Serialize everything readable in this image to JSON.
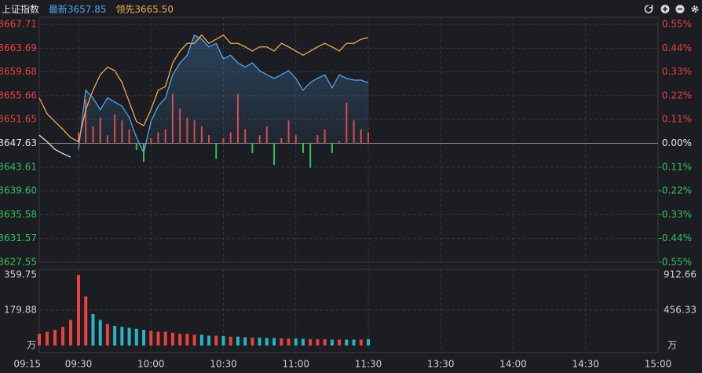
{
  "chart_data": {
    "type": "line",
    "title": "上证指数",
    "header": {
      "latest": "3657.85",
      "lead": "3665.50"
    },
    "x": [
      "09:15",
      "09:18",
      "09:21",
      "09:24",
      "09:27",
      "09:30",
      "09:33",
      "09:36",
      "09:39",
      "09:42",
      "09:45",
      "09:48",
      "09:51",
      "09:54",
      "09:57",
      "10:00",
      "10:03",
      "10:06",
      "10:09",
      "10:12",
      "10:15",
      "10:18",
      "10:21",
      "10:24",
      "10:27",
      "10:30",
      "10:33",
      "10:36",
      "10:39",
      "10:42",
      "10:45",
      "10:48",
      "10:51",
      "10:54",
      "10:57",
      "11:00",
      "11:03",
      "11:06",
      "11:09",
      "11:12",
      "11:15",
      "11:18",
      "11:21",
      "11:24",
      "11:27",
      "11:30"
    ],
    "xticks": [
      "09:15",
      "09:30",
      "10:00",
      "10:30",
      "11:00",
      "11:30",
      "13:30",
      "14:00",
      "14:30",
      "15:00"
    ],
    "ylim": [
      3627.55,
      3667.71
    ],
    "yticks": [
      3667.71,
      3663.69,
      3659.68,
      3655.66,
      3651.65,
      3647.63,
      3643.61,
      {
        "value": 3639.6,
        "label": "3639.60"
      },
      3635.58,
      3631.57,
      3627.55
    ],
    "y2lim": [
      -0.55,
      0.55
    ],
    "y2ticks": [
      {
        "value": 0.55,
        "label": "0.55%"
      },
      {
        "value": 0.44,
        "label": "0.44%"
      },
      {
        "value": 0.33,
        "label": "0.33%"
      },
      {
        "value": 0.22,
        "label": "0.22%"
      },
      {
        "value": 0.11,
        "label": "0.11%"
      },
      {
        "value": 0,
        "label": "0.00%"
      },
      {
        "value": -0.11,
        "label": "-0.11%"
      },
      {
        "value": -0.22,
        "label": "-0.22%"
      },
      {
        "value": -0.33,
        "label": "-0.33%"
      },
      {
        "value": -0.44,
        "label": "-0.44%"
      },
      {
        "value": -0.55,
        "label": "-0.55%"
      }
    ],
    "up_color": "#e8413e",
    "down_color": "#2fc25b",
    "grid": true,
    "series": [
      {
        "name": "最新",
        "color": "#4da6ee",
        "area": true,
        "values": [
          null,
          null,
          null,
          null,
          null,
          3646.6,
          3656.6,
          3655.3,
          3653.3,
          3655.3,
          3654.6,
          3653.9,
          3652.0,
          3648.6,
          3646.0,
          3651.3,
          3653.9,
          3655.3,
          3659.2,
          3661.2,
          3662.5,
          3665.9,
          3665.2,
          3663.9,
          3664.5,
          3661.9,
          3662.5,
          3661.2,
          3660.5,
          3661.2,
          3659.9,
          3659.2,
          3658.6,
          3659.2,
          3659.9,
          3658.6,
          3656.6,
          3657.9,
          3658.6,
          3659.2,
          3657.0,
          3659.2,
          3658.6,
          3658.3,
          3658.3,
          3657.85
        ]
      },
      {
        "name": "领先",
        "color": "#f2a94a",
        "values": [
          3655.3,
          3652.6,
          3651.3,
          3650.0,
          3648.6,
          3647.9,
          3653.3,
          3656.6,
          3659.2,
          3660.5,
          3659.9,
          3657.9,
          3654.6,
          3651.3,
          3650.6,
          3653.3,
          3656.6,
          3657.2,
          3661.2,
          3663.2,
          3664.5,
          3664.5,
          3665.9,
          3664.5,
          3665.2,
          3665.9,
          3664.5,
          3664.5,
          3663.9,
          3663.2,
          3663.9,
          3663.9,
          3663.2,
          3664.5,
          3663.9,
          3663.2,
          3662.5,
          3663.2,
          3663.9,
          3664.5,
          3663.9,
          3663.2,
          3664.5,
          3664.5,
          3665.2,
          3665.5
        ]
      },
      {
        "color": "#e8e8e8",
        "values": [
          3649.0,
          3647.9,
          3646.6,
          3645.9,
          3645.3,
          null,
          null,
          null,
          null,
          null,
          null,
          null,
          null,
          null,
          null,
          null,
          null,
          null,
          null,
          null,
          null,
          null,
          null,
          null,
          null,
          null,
          null,
          null,
          null,
          null,
          null,
          null,
          null,
          null,
          null,
          null,
          null,
          null,
          null,
          null,
          null,
          null,
          null,
          null,
          null,
          null
        ]
      }
    ],
    "strength": {
      "values": [
        null,
        null,
        null,
        null,
        null,
        3649.5,
        3655.0,
        3650.5,
        3652.0,
        3649.0,
        3652.5,
        3651.5,
        3650.0,
        3646.5,
        3644.5,
        3648.5,
        3649.5,
        3650.0,
        3656.0,
        3653.5,
        3652.0,
        3651.5,
        3650.5,
        3649.0,
        3645.0,
        3648.5,
        3649.5,
        3656.0,
        3650.0,
        3646.0,
        3649.0,
        3650.5,
        3644.0,
        3648.5,
        3651.5,
        3649.0,
        3646.0,
        3643.5,
        3649.0,
        3650.0,
        3646.0,
        3648.0,
        3654.5,
        3651.5,
        3650.0,
        3649.5
      ]
    },
    "volume": {
      "unit": "万",
      "up_color": "#e8413e",
      "down_color": "#26b5c4",
      "ylim": [
        0,
        359.75
      ],
      "yticks": [
        359.75,
        179.88
      ],
      "y2lim": [
        0,
        912.66
      ],
      "y2ticks": [
        912.66,
        456.33
      ],
      "values": [
        60,
        70,
        80,
        95,
        130,
        359.75,
        250,
        160,
        130,
        110,
        100,
        95,
        90,
        85,
        80,
        75,
        70,
        70,
        65,
        60,
        60,
        55,
        55,
        50,
        50,
        48,
        45,
        45,
        42,
        40,
        40,
        38,
        38,
        36,
        35,
        35,
        34,
        33,
        32,
        32,
        30,
        30,
        30,
        30,
        30,
        32
      ]
    }
  }
}
